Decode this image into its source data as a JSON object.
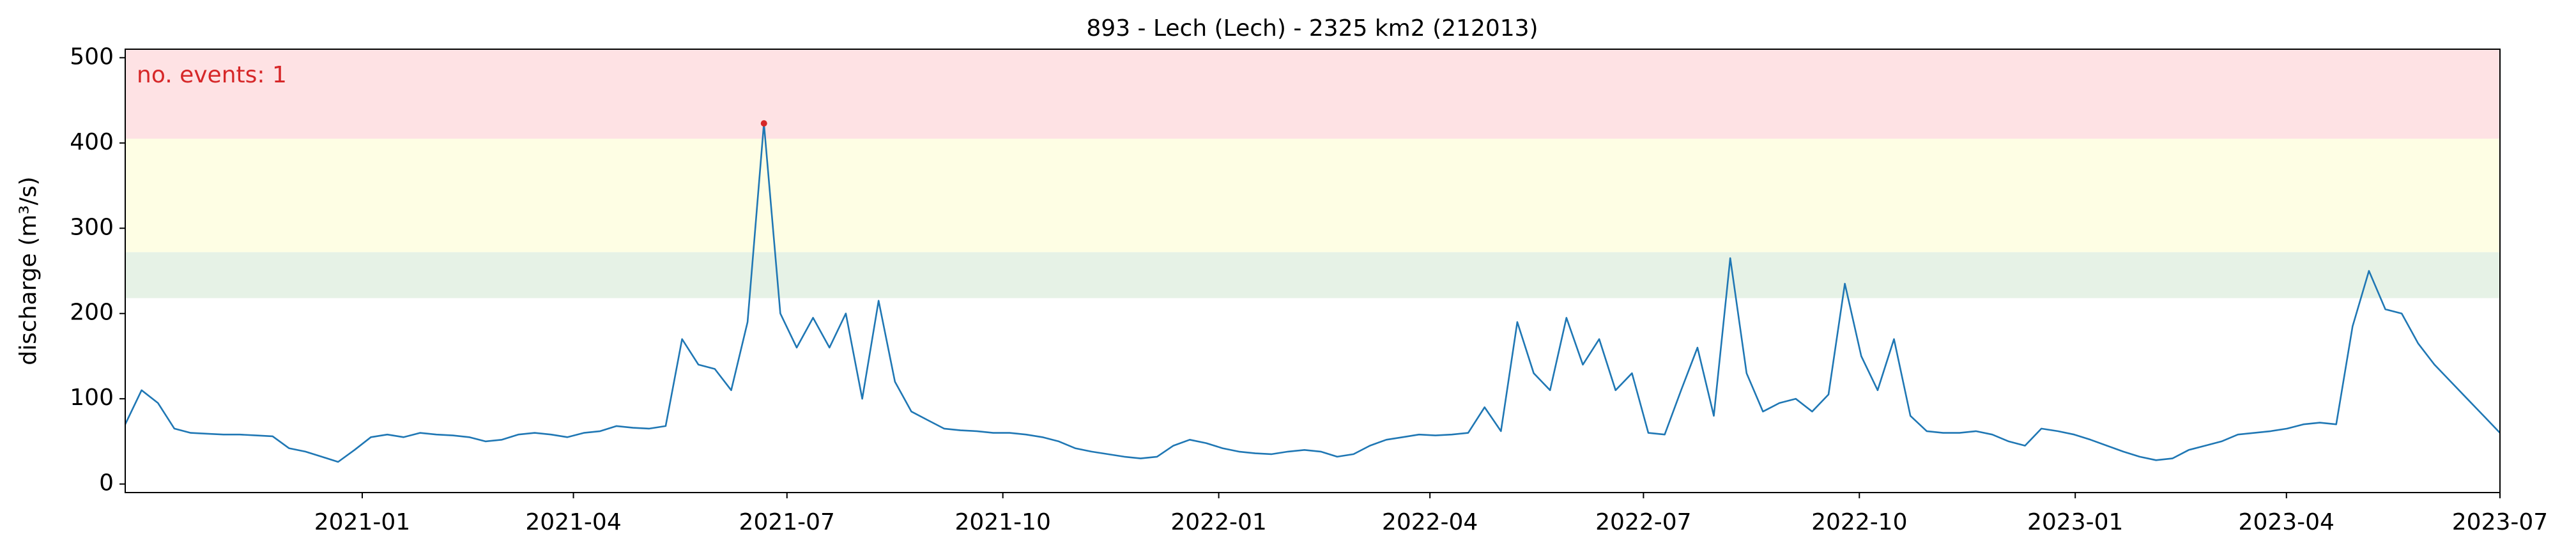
{
  "chart_data": {
    "type": "line",
    "title": "893 - Lech (Lech) - 2325 km2 (212013)",
    "ylabel": "discharge (m³/s)",
    "annotation": "no. events: 1",
    "xlim": [
      "2020-09-22",
      "2023-07-01"
    ],
    "xticks": [
      "2021-01",
      "2021-04",
      "2021-07",
      "2021-10",
      "2022-01",
      "2022-04",
      "2022-07",
      "2022-10",
      "2023-01",
      "2023-04",
      "2023-07"
    ],
    "ylim": [
      -10,
      510
    ],
    "yticks": [
      0,
      100,
      200,
      300,
      400,
      500
    ],
    "bands": [
      {
        "from": 218,
        "to": 272,
        "color": "#e6f2e6"
      },
      {
        "from": 272,
        "to": 405,
        "color": "#fefee4"
      },
      {
        "from": 405,
        "to": 510,
        "color": "#fee2e4"
      }
    ],
    "series": [
      {
        "color": "#1f77b4",
        "values": [
          70,
          110,
          95,
          65,
          60,
          59,
          58,
          58,
          57,
          56,
          42,
          38,
          32,
          26,
          40,
          55,
          58,
          55,
          60,
          58,
          57,
          55,
          50,
          52,
          58,
          60,
          58,
          55,
          60,
          62,
          68,
          66,
          65,
          68,
          170,
          140,
          135,
          110,
          190,
          423,
          200,
          160,
          195,
          160,
          200,
          100,
          215,
          120,
          85,
          75,
          65,
          63,
          62,
          60,
          60,
          58,
          55,
          50,
          42,
          38,
          35,
          32,
          30,
          32,
          45,
          52,
          48,
          42,
          38,
          36,
          35,
          38,
          40,
          38,
          32,
          35,
          45,
          52,
          55,
          58,
          57,
          58,
          60,
          90,
          62,
          190,
          130,
          110,
          195,
          140,
          170,
          110,
          130,
          60,
          58,
          110,
          160,
          80,
          265,
          130,
          85,
          95,
          100,
          85,
          105,
          235,
          150,
          110,
          170,
          80,
          62,
          60,
          60,
          62,
          58,
          50,
          45,
          65,
          62,
          58,
          52,
          45,
          38,
          32,
          28,
          30,
          40,
          45,
          50,
          58,
          60,
          62,
          65,
          70,
          72,
          70,
          185,
          250,
          205,
          200,
          165,
          140,
          120,
          100,
          80,
          60
        ]
      }
    ],
    "events": {
      "color": "#d62728",
      "values": [
        423
      ]
    }
  }
}
